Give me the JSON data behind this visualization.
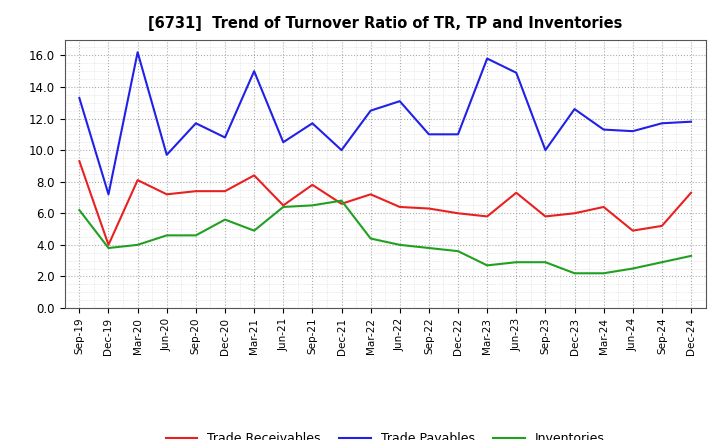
{
  "title": "[6731]  Trend of Turnover Ratio of TR, TP and Inventories",
  "ylim": [
    0.0,
    17.0
  ],
  "yticks": [
    0.0,
    2.0,
    4.0,
    6.0,
    8.0,
    10.0,
    12.0,
    14.0,
    16.0
  ],
  "x_labels": [
    "Sep-19",
    "Dec-19",
    "Mar-20",
    "Jun-20",
    "Sep-20",
    "Dec-20",
    "Mar-21",
    "Jun-21",
    "Sep-21",
    "Dec-21",
    "Mar-22",
    "Jun-22",
    "Sep-22",
    "Dec-22",
    "Mar-23",
    "Jun-23",
    "Sep-23",
    "Dec-23",
    "Mar-24",
    "Jun-24",
    "Sep-24",
    "Dec-24"
  ],
  "trade_receivables": [
    9.3,
    4.0,
    8.1,
    7.2,
    7.4,
    7.4,
    8.4,
    6.5,
    7.8,
    6.6,
    7.2,
    6.4,
    6.3,
    6.0,
    5.8,
    7.3,
    5.8,
    6.0,
    6.4,
    4.9,
    5.2,
    7.3
  ],
  "trade_payables": [
    13.3,
    7.2,
    16.2,
    9.7,
    11.7,
    10.8,
    15.0,
    10.5,
    11.7,
    10.0,
    12.5,
    13.1,
    11.0,
    11.0,
    15.8,
    14.9,
    10.0,
    12.6,
    11.3,
    11.2,
    11.7,
    11.8
  ],
  "inventories": [
    6.2,
    3.8,
    4.0,
    4.6,
    4.6,
    5.6,
    4.9,
    6.4,
    6.5,
    6.8,
    4.4,
    4.0,
    3.8,
    3.6,
    2.7,
    2.9,
    2.9,
    2.2,
    2.2,
    2.5,
    2.9,
    3.3
  ],
  "color_tr": "#e82020",
  "color_tp": "#2020e8",
  "color_inv": "#20a020",
  "background_color": "#ffffff",
  "grid_color": "#999999",
  "legend_labels": [
    "Trade Receivables",
    "Trade Payables",
    "Inventories"
  ]
}
